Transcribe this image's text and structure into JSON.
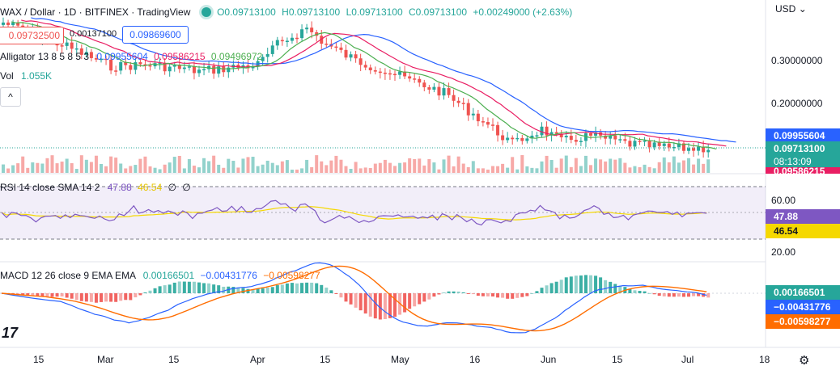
{
  "header": {
    "symbol": "WAX / Dollar · 1D · BITFINEX · TradingView",
    "open": "O0.09713100",
    "high": "H0.09713100",
    "low": "L0.09713100",
    "close": "C0.09713100",
    "change": "+0.00249000 (+2.63%)",
    "sell_price": "0.09732500",
    "spread": "0.00137100",
    "buy_price": "0.09869600",
    "alligator_title": "Alligator 13 8 5 8 5 3",
    "alligator_jaw": "0.09955604",
    "alligator_teeth": "0.09586215",
    "alligator_lips": "0.09496972",
    "vol_label": "Vol",
    "vol_value": "1.055K",
    "collapse_icon": "^"
  },
  "price_axis": {
    "currency": "USD",
    "labels": [
      "0.30000000",
      "0.20000000"
    ],
    "jaw_tag": "0.09955604",
    "last_tag": "0.09713100",
    "countdown": "08:13:09",
    "teeth_tag": "0.09586215"
  },
  "rsi": {
    "title": "RSI 14 close SMA 14 2",
    "value": "47.88",
    "sma": "46.54",
    "extra1": "∅",
    "extra2": "∅",
    "axis_labels": [
      "60.00",
      "20.00"
    ],
    "tag_rsi": "47.88",
    "tag_sma": "46.54"
  },
  "macd": {
    "title": "MACD 12 26 close 9 EMA EMA",
    "hist": "0.00166501",
    "macd": "−0.00431776",
    "signal": "−0.00598277",
    "tag_hist": "0.00166501",
    "tag_macd": "−0.00431776",
    "tag_signal": "−0.00598277"
  },
  "time_axis": [
    "15",
    "Mar",
    "15",
    "Apr",
    "15",
    "May",
    "16",
    "Jun",
    "15",
    "Jul",
    "18"
  ],
  "colors": {
    "up": "#26a69a",
    "down": "#ef5350",
    "jaw": "#2962ff",
    "teeth": "#e91e63",
    "lips": "#4caf50",
    "rsi": "#7e57c2",
    "rsi_sma": "#f5d800",
    "macd": "#2962ff",
    "signal": "#ff6d00"
  },
  "icons": {
    "gear": "gear-icon",
    "logo": "tradingview-logo"
  }
}
